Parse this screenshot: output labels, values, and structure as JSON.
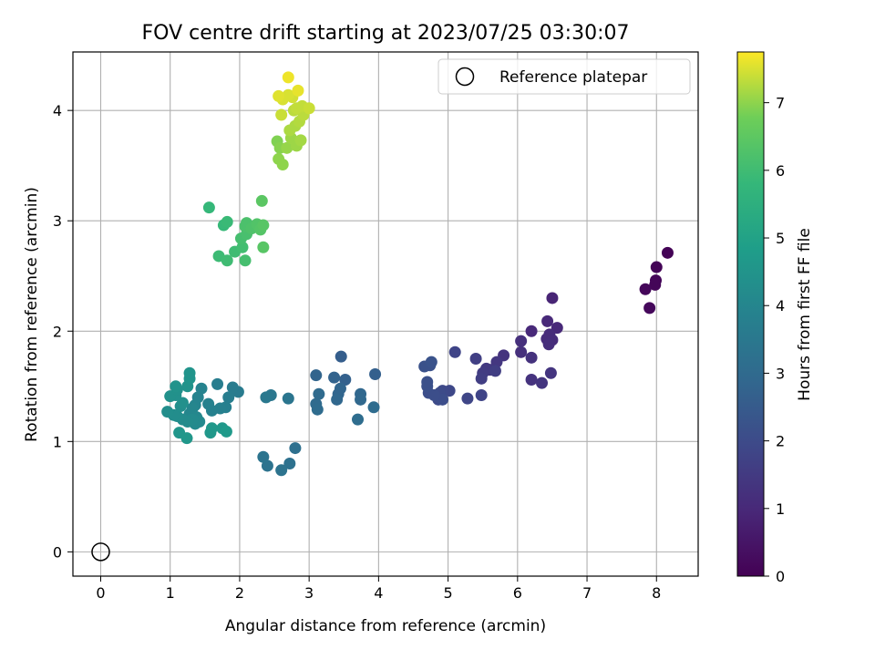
{
  "chart_data": {
    "type": "scatter",
    "title": "FOV centre drift starting at 2023/07/25 03:30:07",
    "xlabel": "Angular distance from reference (arcmin)",
    "ylabel": "Rotation from reference (arcmin)",
    "xlim": [
      -0.4,
      8.6
    ],
    "ylim": [
      -0.22,
      4.53
    ],
    "x_ticks": [
      "0",
      "1",
      "2",
      "3",
      "4",
      "5",
      "6",
      "7",
      "8"
    ],
    "y_ticks": [
      "0",
      "1",
      "2",
      "3",
      "4"
    ],
    "grid": true,
    "legend": {
      "placement": "top-right",
      "entries": [
        "Reference platepar"
      ]
    },
    "colorbar": {
      "label": "Hours from first FF file",
      "range": [
        0,
        7.75
      ],
      "ticks": [
        "0",
        "1",
        "2",
        "3",
        "4",
        "5",
        "6",
        "7"
      ],
      "colormap": "viridis"
    },
    "reference_point": {
      "x": 0,
      "y": 0
    },
    "points": [
      {
        "x": 8.16,
        "y": 2.71,
        "hours": 0.05
      },
      {
        "x": 8.0,
        "y": 2.58,
        "hours": 0.08
      },
      {
        "x": 7.99,
        "y": 2.46,
        "hours": 0.1
      },
      {
        "x": 7.98,
        "y": 2.42,
        "hours": 0.12
      },
      {
        "x": 7.84,
        "y": 2.38,
        "hours": 0.15
      },
      {
        "x": 7.9,
        "y": 2.21,
        "hours": 0.18
      },
      {
        "x": 6.5,
        "y": 2.3,
        "hours": 0.9
      },
      {
        "x": 6.43,
        "y": 2.09,
        "hours": 1.0
      },
      {
        "x": 6.2,
        "y": 2.0,
        "hours": 1.0
      },
      {
        "x": 6.57,
        "y": 2.03,
        "hours": 1.0
      },
      {
        "x": 6.46,
        "y": 1.97,
        "hours": 1.1
      },
      {
        "x": 6.42,
        "y": 1.93,
        "hours": 1.1
      },
      {
        "x": 6.5,
        "y": 1.92,
        "hours": 1.1
      },
      {
        "x": 6.45,
        "y": 1.88,
        "hours": 1.15
      },
      {
        "x": 6.05,
        "y": 1.91,
        "hours": 1.2
      },
      {
        "x": 6.05,
        "y": 1.81,
        "hours": 1.2
      },
      {
        "x": 6.2,
        "y": 1.76,
        "hours": 1.25
      },
      {
        "x": 5.8,
        "y": 1.78,
        "hours": 1.3
      },
      {
        "x": 6.2,
        "y": 1.56,
        "hours": 1.3
      },
      {
        "x": 6.35,
        "y": 1.53,
        "hours": 1.35
      },
      {
        "x": 6.48,
        "y": 1.62,
        "hours": 1.35
      },
      {
        "x": 5.7,
        "y": 1.72,
        "hours": 1.4
      },
      {
        "x": 5.6,
        "y": 1.65,
        "hours": 1.45
      },
      {
        "x": 5.55,
        "y": 1.66,
        "hours": 1.5
      },
      {
        "x": 5.5,
        "y": 1.62,
        "hours": 1.55
      },
      {
        "x": 5.68,
        "y": 1.64,
        "hours": 1.6
      },
      {
        "x": 5.48,
        "y": 1.57,
        "hours": 1.6
      },
      {
        "x": 5.4,
        "y": 1.75,
        "hours": 1.65
      },
      {
        "x": 5.1,
        "y": 1.81,
        "hours": 1.8
      },
      {
        "x": 5.48,
        "y": 1.42,
        "hours": 1.8
      },
      {
        "x": 5.28,
        "y": 1.39,
        "hours": 1.85
      },
      {
        "x": 5.02,
        "y": 1.46,
        "hours": 1.9
      },
      {
        "x": 4.92,
        "y": 1.46,
        "hours": 1.95
      },
      {
        "x": 4.88,
        "y": 1.44,
        "hours": 2.0
      },
      {
        "x": 4.86,
        "y": 1.38,
        "hours": 2.0
      },
      {
        "x": 4.92,
        "y": 1.38,
        "hours": 2.05
      },
      {
        "x": 4.8,
        "y": 1.42,
        "hours": 2.1
      },
      {
        "x": 4.72,
        "y": 1.44,
        "hours": 2.1
      },
      {
        "x": 4.7,
        "y": 1.5,
        "hours": 2.15
      },
      {
        "x": 4.7,
        "y": 1.54,
        "hours": 2.15
      },
      {
        "x": 4.74,
        "y": 1.69,
        "hours": 2.2
      },
      {
        "x": 4.66,
        "y": 1.68,
        "hours": 2.2
      },
      {
        "x": 4.76,
        "y": 1.72,
        "hours": 2.25
      },
      {
        "x": 3.46,
        "y": 1.77,
        "hours": 2.6
      },
      {
        "x": 3.95,
        "y": 1.61,
        "hours": 2.65
      },
      {
        "x": 3.52,
        "y": 1.56,
        "hours": 2.7
      },
      {
        "x": 3.36,
        "y": 1.58,
        "hours": 2.75
      },
      {
        "x": 3.1,
        "y": 1.6,
        "hours": 2.8
      },
      {
        "x": 3.45,
        "y": 1.48,
        "hours": 2.85
      },
      {
        "x": 3.42,
        "y": 1.43,
        "hours": 2.85
      },
      {
        "x": 3.4,
        "y": 1.38,
        "hours": 2.9
      },
      {
        "x": 3.74,
        "y": 1.43,
        "hours": 2.9
      },
      {
        "x": 3.74,
        "y": 1.38,
        "hours": 2.95
      },
      {
        "x": 3.14,
        "y": 1.43,
        "hours": 3.0
      },
      {
        "x": 3.1,
        "y": 1.34,
        "hours": 3.0
      },
      {
        "x": 3.12,
        "y": 1.29,
        "hours": 3.05
      },
      {
        "x": 3.93,
        "y": 1.31,
        "hours": 3.05
      },
      {
        "x": 3.7,
        "y": 1.2,
        "hours": 3.1
      },
      {
        "x": 2.8,
        "y": 0.94,
        "hours": 3.2
      },
      {
        "x": 2.72,
        "y": 0.8,
        "hours": 3.25
      },
      {
        "x": 2.6,
        "y": 0.74,
        "hours": 3.3
      },
      {
        "x": 2.4,
        "y": 0.78,
        "hours": 3.3
      },
      {
        "x": 2.34,
        "y": 0.86,
        "hours": 3.35
      },
      {
        "x": 2.7,
        "y": 1.39,
        "hours": 3.4
      },
      {
        "x": 2.45,
        "y": 1.42,
        "hours": 3.45
      },
      {
        "x": 2.38,
        "y": 1.4,
        "hours": 3.5
      },
      {
        "x": 1.98,
        "y": 1.45,
        "hours": 3.6
      },
      {
        "x": 1.9,
        "y": 1.49,
        "hours": 3.65
      },
      {
        "x": 1.84,
        "y": 1.4,
        "hours": 3.7
      },
      {
        "x": 1.68,
        "y": 1.52,
        "hours": 3.7
      },
      {
        "x": 1.8,
        "y": 1.31,
        "hours": 3.75
      },
      {
        "x": 1.72,
        "y": 1.3,
        "hours": 3.8
      },
      {
        "x": 1.6,
        "y": 1.28,
        "hours": 3.85
      },
      {
        "x": 1.55,
        "y": 1.34,
        "hours": 3.85
      },
      {
        "x": 1.45,
        "y": 1.48,
        "hours": 3.9
      },
      {
        "x": 1.4,
        "y": 1.4,
        "hours": 3.9
      },
      {
        "x": 1.36,
        "y": 1.33,
        "hours": 3.95
      },
      {
        "x": 1.32,
        "y": 1.3,
        "hours": 4.0
      },
      {
        "x": 1.28,
        "y": 1.25,
        "hours": 4.0
      },
      {
        "x": 1.38,
        "y": 1.22,
        "hours": 4.05
      },
      {
        "x": 1.42,
        "y": 1.18,
        "hours": 4.1
      },
      {
        "x": 1.36,
        "y": 1.16,
        "hours": 4.1
      },
      {
        "x": 1.32,
        "y": 1.2,
        "hours": 4.15
      },
      {
        "x": 1.25,
        "y": 1.18,
        "hours": 4.2
      },
      {
        "x": 1.18,
        "y": 1.2,
        "hours": 4.2
      },
      {
        "x": 1.1,
        "y": 1.23,
        "hours": 4.25
      },
      {
        "x": 1.05,
        "y": 1.24,
        "hours": 4.25
      },
      {
        "x": 0.96,
        "y": 1.27,
        "hours": 4.3
      },
      {
        "x": 1.15,
        "y": 1.32,
        "hours": 4.3
      },
      {
        "x": 1.18,
        "y": 1.35,
        "hours": 4.35
      },
      {
        "x": 1.08,
        "y": 1.42,
        "hours": 4.35
      },
      {
        "x": 1.0,
        "y": 1.41,
        "hours": 4.4
      },
      {
        "x": 1.1,
        "y": 1.47,
        "hours": 4.4
      },
      {
        "x": 1.08,
        "y": 1.5,
        "hours": 4.45
      },
      {
        "x": 1.25,
        "y": 1.5,
        "hours": 4.45
      },
      {
        "x": 1.28,
        "y": 1.57,
        "hours": 4.5
      },
      {
        "x": 1.28,
        "y": 1.62,
        "hours": 4.5
      },
      {
        "x": 1.13,
        "y": 1.08,
        "hours": 4.55
      },
      {
        "x": 1.24,
        "y": 1.03,
        "hours": 4.6
      },
      {
        "x": 1.58,
        "y": 1.08,
        "hours": 4.6
      },
      {
        "x": 1.6,
        "y": 1.12,
        "hours": 4.65
      },
      {
        "x": 1.75,
        "y": 1.12,
        "hours": 4.65
      },
      {
        "x": 1.81,
        "y": 1.09,
        "hours": 4.7
      },
      {
        "x": 1.56,
        "y": 3.12,
        "hours": 5.8
      },
      {
        "x": 1.77,
        "y": 2.96,
        "hours": 5.85
      },
      {
        "x": 1.82,
        "y": 2.99,
        "hours": 5.9
      },
      {
        "x": 1.7,
        "y": 2.68,
        "hours": 5.95
      },
      {
        "x": 1.82,
        "y": 2.64,
        "hours": 6.0
      },
      {
        "x": 1.93,
        "y": 2.72,
        "hours": 6.0
      },
      {
        "x": 2.04,
        "y": 2.76,
        "hours": 6.05
      },
      {
        "x": 2.08,
        "y": 2.64,
        "hours": 6.1
      },
      {
        "x": 2.02,
        "y": 2.84,
        "hours": 6.1
      },
      {
        "x": 2.1,
        "y": 2.88,
        "hours": 6.15
      },
      {
        "x": 2.08,
        "y": 2.95,
        "hours": 6.2
      },
      {
        "x": 2.1,
        "y": 2.98,
        "hours": 6.2
      },
      {
        "x": 2.17,
        "y": 2.93,
        "hours": 6.25
      },
      {
        "x": 2.25,
        "y": 2.97,
        "hours": 6.3
      },
      {
        "x": 2.3,
        "y": 2.92,
        "hours": 6.35
      },
      {
        "x": 2.34,
        "y": 2.96,
        "hours": 6.4
      },
      {
        "x": 2.34,
        "y": 2.76,
        "hours": 6.4
      },
      {
        "x": 2.32,
        "y": 3.18,
        "hours": 6.45
      },
      {
        "x": 2.54,
        "y": 3.72,
        "hours": 6.9
      },
      {
        "x": 2.58,
        "y": 3.66,
        "hours": 6.95
      },
      {
        "x": 2.56,
        "y": 3.56,
        "hours": 7.0
      },
      {
        "x": 2.62,
        "y": 3.51,
        "hours": 7.0
      },
      {
        "x": 2.68,
        "y": 3.66,
        "hours": 7.05
      },
      {
        "x": 2.74,
        "y": 3.75,
        "hours": 7.1
      },
      {
        "x": 2.82,
        "y": 3.68,
        "hours": 7.1
      },
      {
        "x": 2.88,
        "y": 3.73,
        "hours": 7.15
      },
      {
        "x": 2.72,
        "y": 3.82,
        "hours": 7.2
      },
      {
        "x": 2.8,
        "y": 3.86,
        "hours": 7.2
      },
      {
        "x": 2.86,
        "y": 3.9,
        "hours": 7.25
      },
      {
        "x": 2.92,
        "y": 3.96,
        "hours": 7.3
      },
      {
        "x": 2.78,
        "y": 4.0,
        "hours": 7.3
      },
      {
        "x": 2.82,
        "y": 4.02,
        "hours": 7.35
      },
      {
        "x": 2.9,
        "y": 4.04,
        "hours": 7.35
      },
      {
        "x": 3.0,
        "y": 4.02,
        "hours": 7.4
      },
      {
        "x": 2.6,
        "y": 3.96,
        "hours": 7.4
      },
      {
        "x": 2.76,
        "y": 4.12,
        "hours": 7.45
      },
      {
        "x": 2.7,
        "y": 4.14,
        "hours": 7.5
      },
      {
        "x": 2.62,
        "y": 4.1,
        "hours": 7.5
      },
      {
        "x": 2.56,
        "y": 4.13,
        "hours": 7.55
      },
      {
        "x": 2.84,
        "y": 4.18,
        "hours": 7.6
      },
      {
        "x": 2.7,
        "y": 4.3,
        "hours": 7.65
      }
    ]
  }
}
